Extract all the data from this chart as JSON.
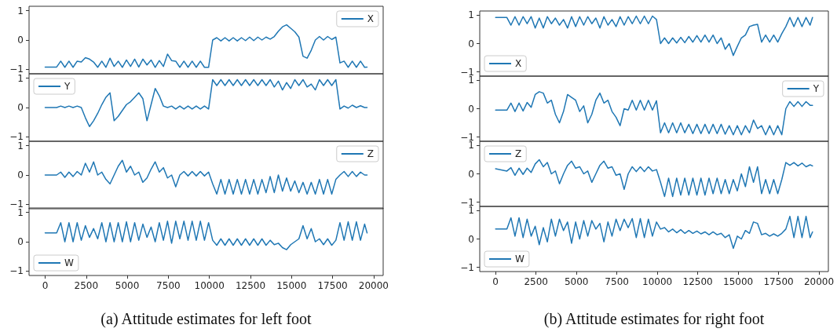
{
  "chart_data": [
    {
      "type": "line",
      "x": [
        0,
        700,
        950,
        1200,
        1450,
        1700,
        1950,
        2200,
        2450,
        2700,
        2950,
        3200,
        3450,
        3700,
        3950,
        4200,
        4450,
        4700,
        4950,
        5200,
        5450,
        5700,
        5950,
        6200,
        6450,
        6700,
        6950,
        7200,
        7450,
        7700,
        7950,
        8200,
        8450,
        8700,
        8950,
        9200,
        9450,
        9700,
        9950,
        10200,
        10450,
        10700,
        10950,
        11200,
        11450,
        11700,
        11950,
        12200,
        12450,
        12700,
        12950,
        13200,
        13450,
        13700,
        13950,
        14200,
        14450,
        14700,
        14950,
        15200,
        15450,
        15700,
        15950,
        16200,
        16450,
        16700,
        16950,
        17200,
        17450,
        17700,
        17950,
        18200,
        18450,
        18700,
        18950,
        19200,
        19450,
        19600
      ],
      "xlim": [
        -980,
        20580
      ],
      "xticks": [
        0,
        2500,
        5000,
        7500,
        10000,
        12500,
        15000,
        17500,
        20000
      ],
      "ylim": [
        -1.15,
        1.15
      ],
      "yticks": [
        -1,
        0,
        1
      ],
      "tick_labels": "y",
      "legend": "top right",
      "marker": "none",
      "series": [
        {
          "name": "X",
          "color": "#1f77b4",
          "values": [
            -0.92,
            -0.92,
            -0.72,
            -0.93,
            -0.72,
            -0.93,
            -0.72,
            -0.75,
            -0.6,
            -0.65,
            -0.75,
            -0.93,
            -0.72,
            -0.93,
            -0.62,
            -0.9,
            -0.72,
            -0.93,
            -0.68,
            -0.9,
            -0.65,
            -0.92,
            -0.65,
            -0.85,
            -0.68,
            -0.93,
            -0.7,
            -0.9,
            -0.48,
            -0.7,
            -0.72,
            -0.93,
            -0.72,
            -0.93,
            -0.72,
            -0.93,
            -0.72,
            -0.93,
            -0.93,
            0.0,
            0.08,
            -0.03,
            0.08,
            -0.03,
            0.08,
            -0.03,
            0.08,
            -0.02,
            0.1,
            -0.02,
            0.1,
            0.0,
            0.1,
            0.03,
            0.12,
            0.3,
            0.45,
            0.52,
            0.4,
            0.28,
            0.1,
            -0.55,
            -0.62,
            -0.35,
            0.0,
            0.12,
            0.0,
            0.12,
            0.02,
            0.1,
            -0.78,
            -0.72,
            -0.93,
            -0.72,
            -0.93,
            -0.72,
            -0.93,
            -0.92
          ]
        }
      ]
    },
    {
      "type": "line",
      "x": [
        0,
        700,
        950,
        1200,
        1450,
        1700,
        1950,
        2200,
        2450,
        2700,
        2950,
        3200,
        3450,
        3700,
        3950,
        4200,
        4450,
        4700,
        4950,
        5200,
        5450,
        5700,
        5950,
        6200,
        6450,
        6700,
        6950,
        7200,
        7450,
        7700,
        7950,
        8200,
        8450,
        8700,
        8950,
        9200,
        9450,
        9700,
        9950,
        10200,
        10450,
        10700,
        10950,
        11200,
        11450,
        11700,
        11950,
        12200,
        12450,
        12700,
        12950,
        13200,
        13450,
        13700,
        13950,
        14200,
        14450,
        14700,
        14950,
        15200,
        15450,
        15700,
        15950,
        16200,
        16450,
        16700,
        16950,
        17200,
        17450,
        17700,
        17950,
        18200,
        18450,
        18700,
        18950,
        19200,
        19450,
        19600
      ],
      "xlim": [
        -980,
        20580
      ],
      "xticks": [
        0,
        2500,
        5000,
        7500,
        10000,
        12500,
        15000,
        17500,
        20000
      ],
      "ylim": [
        -1.15,
        1.15
      ],
      "yticks": [
        -1,
        0,
        1
      ],
      "tick_labels": "y",
      "legend": "top left",
      "marker": "none",
      "series": [
        {
          "name": "Y",
          "color": "#1f77b4",
          "values": [
            0.0,
            0.0,
            0.05,
            0.0,
            0.05,
            0.0,
            0.05,
            0.0,
            -0.35,
            -0.65,
            -0.45,
            -0.2,
            0.1,
            0.35,
            0.5,
            -0.45,
            -0.3,
            -0.1,
            0.1,
            0.2,
            0.35,
            0.5,
            0.3,
            -0.45,
            0.1,
            0.65,
            0.4,
            0.05,
            0.0,
            0.05,
            -0.05,
            0.05,
            -0.05,
            0.05,
            -0.05,
            0.05,
            -0.05,
            0.05,
            -0.05,
            0.95,
            0.75,
            0.95,
            0.75,
            0.95,
            0.75,
            0.95,
            0.75,
            0.95,
            0.75,
            0.95,
            0.75,
            0.95,
            0.75,
            0.95,
            0.7,
            0.9,
            0.6,
            0.85,
            0.65,
            0.95,
            0.75,
            0.95,
            0.7,
            0.8,
            0.6,
            0.95,
            0.75,
            0.95,
            0.75,
            0.95,
            -0.05,
            0.05,
            -0.02,
            0.08,
            0.0,
            0.06,
            0.0,
            0.0
          ]
        }
      ]
    },
    {
      "type": "line",
      "x": [
        0,
        700,
        950,
        1200,
        1450,
        1700,
        1950,
        2200,
        2450,
        2700,
        2950,
        3200,
        3450,
        3700,
        3950,
        4200,
        4450,
        4700,
        4950,
        5200,
        5450,
        5700,
        5950,
        6200,
        6450,
        6700,
        6950,
        7200,
        7450,
        7700,
        7950,
        8200,
        8450,
        8700,
        8950,
        9200,
        9450,
        9700,
        9950,
        10200,
        10450,
        10700,
        10950,
        11200,
        11450,
        11700,
        11950,
        12200,
        12450,
        12700,
        12950,
        13200,
        13450,
        13700,
        13950,
        14200,
        14450,
        14700,
        14950,
        15200,
        15450,
        15700,
        15950,
        16200,
        16450,
        16700,
        16950,
        17200,
        17450,
        17700,
        17950,
        18200,
        18450,
        18700,
        18950,
        19200,
        19450,
        19600
      ],
      "xlim": [
        -980,
        20580
      ],
      "xticks": [
        0,
        2500,
        5000,
        7500,
        10000,
        12500,
        15000,
        17500,
        20000
      ],
      "ylim": [
        -1.15,
        1.15
      ],
      "yticks": [
        -1,
        0,
        1
      ],
      "tick_labels": "y",
      "legend": "top right",
      "marker": "none",
      "series": [
        {
          "name": "Z",
          "color": "#1f77b4",
          "values": [
            0.0,
            0.0,
            0.1,
            -0.08,
            0.1,
            -0.05,
            0.12,
            0.0,
            0.4,
            0.1,
            0.45,
            0.0,
            0.1,
            -0.15,
            -0.3,
            0.0,
            0.3,
            0.5,
            0.1,
            0.3,
            0.0,
            0.1,
            -0.25,
            -0.1,
            0.2,
            0.45,
            0.1,
            0.25,
            -0.1,
            0.0,
            -0.4,
            0.0,
            0.12,
            -0.03,
            0.12,
            -0.03,
            0.12,
            -0.03,
            0.1,
            -0.3,
            -0.65,
            -0.15,
            -0.65,
            -0.15,
            -0.65,
            -0.15,
            -0.65,
            -0.15,
            -0.65,
            -0.15,
            -0.65,
            -0.15,
            -0.6,
            -0.05,
            -0.6,
            0.0,
            -0.55,
            -0.1,
            -0.55,
            -0.2,
            -0.6,
            -0.25,
            -0.65,
            -0.25,
            -0.65,
            -0.15,
            -0.65,
            -0.15,
            -0.65,
            -0.15,
            0.0,
            0.12,
            -0.05,
            0.12,
            -0.05,
            0.1,
            0.0,
            0.0
          ]
        }
      ]
    },
    {
      "type": "line",
      "x": [
        0,
        700,
        950,
        1200,
        1450,
        1700,
        1950,
        2200,
        2450,
        2700,
        2950,
        3200,
        3450,
        3700,
        3950,
        4200,
        4450,
        4700,
        4950,
        5200,
        5450,
        5700,
        5950,
        6200,
        6450,
        6700,
        6950,
        7200,
        7450,
        7700,
        7950,
        8200,
        8450,
        8700,
        8950,
        9200,
        9450,
        9700,
        9950,
        10200,
        10450,
        10700,
        10950,
        11200,
        11450,
        11700,
        11950,
        12200,
        12450,
        12700,
        12950,
        13200,
        13450,
        13700,
        13950,
        14200,
        14450,
        14700,
        14950,
        15200,
        15450,
        15700,
        15950,
        16200,
        16450,
        16700,
        16950,
        17200,
        17450,
        17700,
        17950,
        18200,
        18450,
        18700,
        18950,
        19200,
        19450,
        19600
      ],
      "xlim": [
        -980,
        20580
      ],
      "xticks": [
        0,
        2500,
        5000,
        7500,
        10000,
        12500,
        15000,
        17500,
        20000
      ],
      "ylim": [
        -1.15,
        1.15
      ],
      "yticks": [
        -1,
        0,
        1
      ],
      "legend": "bottom left",
      "marker": "none",
      "annotations": [
        "(a) Attitude estimates for left foot"
      ],
      "series": [
        {
          "name": "W",
          "color": "#1f77b4",
          "values": [
            0.3,
            0.3,
            0.65,
            0.0,
            0.65,
            0.0,
            0.65,
            0.05,
            0.55,
            0.15,
            0.45,
            0.1,
            0.65,
            0.0,
            0.65,
            0.0,
            0.65,
            0.0,
            0.68,
            0.0,
            0.65,
            0.05,
            0.6,
            0.15,
            0.5,
            0.0,
            0.65,
            0.05,
            0.7,
            -0.05,
            0.7,
            0.1,
            0.7,
            0.05,
            0.7,
            0.05,
            0.7,
            0.05,
            0.65,
            0.05,
            -0.12,
            0.1,
            -0.12,
            0.1,
            -0.12,
            0.1,
            -0.12,
            0.1,
            -0.12,
            0.1,
            -0.12,
            0.1,
            -0.12,
            0.05,
            -0.1,
            -0.05,
            -0.2,
            -0.27,
            -0.1,
            0.0,
            0.1,
            0.55,
            0.1,
            0.45,
            0.0,
            0.1,
            -0.1,
            0.1,
            -0.12,
            0.05,
            0.65,
            0.05,
            0.68,
            0.05,
            0.68,
            0.05,
            0.6,
            0.3
          ]
        }
      ]
    },
    {
      "type": "line",
      "x": [
        0,
        700,
        950,
        1200,
        1450,
        1700,
        1950,
        2200,
        2450,
        2700,
        2950,
        3200,
        3450,
        3700,
        3950,
        4200,
        4450,
        4700,
        4950,
        5200,
        5450,
        5700,
        5950,
        6200,
        6450,
        6700,
        6950,
        7200,
        7450,
        7700,
        7950,
        8200,
        8450,
        8700,
        8950,
        9200,
        9450,
        9700,
        9950,
        10200,
        10450,
        10700,
        10950,
        11200,
        11450,
        11700,
        11950,
        12200,
        12450,
        12700,
        12950,
        13200,
        13450,
        13700,
        13950,
        14200,
        14450,
        14700,
        14950,
        15200,
        15450,
        15700,
        15950,
        16200,
        16450,
        16700,
        16950,
        17200,
        17450,
        17700,
        17950,
        18200,
        18450,
        18700,
        18950,
        19200,
        19450,
        19600
      ],
      "xlim": [
        -980,
        20580
      ],
      "xticks": [
        0,
        2500,
        5000,
        7500,
        10000,
        12500,
        15000,
        17500,
        20000
      ],
      "ylim": [
        -1.15,
        1.15
      ],
      "yticks": [
        -1,
        0,
        1
      ],
      "tick_labels": "y",
      "legend": "bottom left",
      "marker": "none",
      "series": [
        {
          "name": "X",
          "color": "#1f77b4",
          "values": [
            0.92,
            0.92,
            0.65,
            0.95,
            0.65,
            0.95,
            0.7,
            0.95,
            0.55,
            0.9,
            0.55,
            0.95,
            0.7,
            0.9,
            0.65,
            0.85,
            0.55,
            0.95,
            0.6,
            0.95,
            0.65,
            0.95,
            0.7,
            0.9,
            0.55,
            0.95,
            0.65,
            0.85,
            0.6,
            0.95,
            0.65,
            0.95,
            0.7,
            0.97,
            0.7,
            0.97,
            0.7,
            0.97,
            0.85,
            0.0,
            0.2,
            0.0,
            0.2,
            0.02,
            0.22,
            0.03,
            0.25,
            0.05,
            0.28,
            0.05,
            0.3,
            0.05,
            0.3,
            0.0,
            0.2,
            -0.2,
            0.0,
            -0.42,
            -0.1,
            0.2,
            0.3,
            0.6,
            0.65,
            0.68,
            0.05,
            0.3,
            0.05,
            0.3,
            0.05,
            0.35,
            0.6,
            0.92,
            0.6,
            0.92,
            0.6,
            0.92,
            0.65,
            0.92
          ]
        }
      ]
    },
    {
      "type": "line",
      "x": [
        0,
        700,
        950,
        1200,
        1450,
        1700,
        1950,
        2200,
        2450,
        2700,
        2950,
        3200,
        3450,
        3700,
        3950,
        4200,
        4450,
        4700,
        4950,
        5200,
        5450,
        5700,
        5950,
        6200,
        6450,
        6700,
        6950,
        7200,
        7450,
        7700,
        7950,
        8200,
        8450,
        8700,
        8950,
        9200,
        9450,
        9700,
        9950,
        10200,
        10450,
        10700,
        10950,
        11200,
        11450,
        11700,
        11950,
        12200,
        12450,
        12700,
        12950,
        13200,
        13450,
        13700,
        13950,
        14200,
        14450,
        14700,
        14950,
        15200,
        15450,
        15700,
        15950,
        16200,
        16450,
        16700,
        16950,
        17200,
        17450,
        17700,
        17950,
        18200,
        18450,
        18700,
        18950,
        19200,
        19450,
        19600
      ],
      "xlim": [
        -980,
        20580
      ],
      "xticks": [
        0,
        2500,
        5000,
        7500,
        10000,
        12500,
        15000,
        17500,
        20000
      ],
      "ylim": [
        -1.15,
        1.15
      ],
      "yticks": [
        -1,
        0,
        1
      ],
      "tick_labels": "y",
      "legend": "top right",
      "marker": "none",
      "series": [
        {
          "name": "Y",
          "color": "#1f77b4",
          "values": [
            -0.05,
            -0.05,
            0.2,
            -0.1,
            0.2,
            -0.08,
            0.22,
            0.05,
            0.5,
            0.6,
            0.55,
            0.2,
            0.3,
            -0.2,
            -0.5,
            -0.1,
            0.5,
            0.4,
            0.3,
            -0.1,
            0.1,
            -0.5,
            -0.2,
            0.3,
            0.55,
            0.2,
            0.3,
            -0.1,
            -0.3,
            -0.6,
            0.0,
            -0.05,
            0.3,
            -0.05,
            0.3,
            -0.05,
            0.3,
            -0.05,
            0.28,
            -0.85,
            -0.5,
            -0.85,
            -0.5,
            -0.85,
            -0.5,
            -0.85,
            -0.55,
            -0.88,
            -0.55,
            -0.88,
            -0.55,
            -0.88,
            -0.55,
            -0.88,
            -0.55,
            -0.9,
            -0.6,
            -0.92,
            -0.6,
            -0.92,
            -0.6,
            -0.85,
            -0.4,
            -0.7,
            -0.6,
            -0.92,
            -0.6,
            -0.92,
            -0.6,
            -0.92,
            0.0,
            0.25,
            0.08,
            0.25,
            0.08,
            0.25,
            0.12,
            0.12
          ]
        }
      ]
    },
    {
      "type": "line",
      "x": [
        0,
        700,
        950,
        1200,
        1450,
        1700,
        1950,
        2200,
        2450,
        2700,
        2950,
        3200,
        3450,
        3700,
        3950,
        4200,
        4450,
        4700,
        4950,
        5200,
        5450,
        5700,
        5950,
        6200,
        6450,
        6700,
        6950,
        7200,
        7450,
        7700,
        7950,
        8200,
        8450,
        8700,
        8950,
        9200,
        9450,
        9700,
        9950,
        10200,
        10450,
        10700,
        10950,
        11200,
        11450,
        11700,
        11950,
        12200,
        12450,
        12700,
        12950,
        13200,
        13450,
        13700,
        13950,
        14200,
        14450,
        14700,
        14950,
        15200,
        15450,
        15700,
        15950,
        16200,
        16450,
        16700,
        16950,
        17200,
        17450,
        17700,
        17950,
        18200,
        18450,
        18700,
        18950,
        19200,
        19450,
        19600
      ],
      "xlim": [
        -980,
        20580
      ],
      "xticks": [
        0,
        2500,
        5000,
        7500,
        10000,
        12500,
        15000,
        17500,
        20000
      ],
      "ylim": [
        -1.15,
        1.15
      ],
      "yticks": [
        -1,
        0,
        1
      ],
      "tick_labels": "y",
      "legend": "top left",
      "marker": "none",
      "series": [
        {
          "name": "Z",
          "color": "#1f77b4",
          "values": [
            0.18,
            0.1,
            0.22,
            -0.05,
            0.2,
            -0.02,
            0.2,
            0.05,
            0.35,
            0.5,
            0.25,
            0.4,
            0.0,
            0.1,
            -0.35,
            0.0,
            0.3,
            0.45,
            0.2,
            0.25,
            0.0,
            0.1,
            -0.3,
            0.0,
            0.3,
            0.45,
            0.2,
            0.25,
            -0.05,
            0.0,
            -0.55,
            0.0,
            0.25,
            0.08,
            0.25,
            0.08,
            0.25,
            0.1,
            0.15,
            -0.3,
            -0.8,
            -0.15,
            -0.8,
            -0.15,
            -0.75,
            -0.15,
            -0.75,
            -0.15,
            -0.75,
            -0.15,
            -0.75,
            -0.15,
            -0.7,
            -0.15,
            -0.7,
            -0.2,
            -0.7,
            -0.2,
            -0.6,
            0.0,
            -0.45,
            0.25,
            -0.3,
            0.25,
            -0.7,
            -0.2,
            -0.7,
            -0.2,
            -0.7,
            -0.2,
            0.4,
            0.3,
            0.4,
            0.28,
            0.38,
            0.25,
            0.32,
            0.28
          ]
        }
      ]
    },
    {
      "type": "line",
      "x": [
        0,
        700,
        950,
        1200,
        1450,
        1700,
        1950,
        2200,
        2450,
        2700,
        2950,
        3200,
        3450,
        3700,
        3950,
        4200,
        4450,
        4700,
        4950,
        5200,
        5450,
        5700,
        5950,
        6200,
        6450,
        6700,
        6950,
        7200,
        7450,
        7700,
        7950,
        8200,
        8450,
        8700,
        8950,
        9200,
        9450,
        9700,
        9950,
        10200,
        10450,
        10700,
        10950,
        11200,
        11450,
        11700,
        11950,
        12200,
        12450,
        12700,
        12950,
        13200,
        13450,
        13700,
        13950,
        14200,
        14450,
        14700,
        14950,
        15200,
        15450,
        15700,
        15950,
        16200,
        16450,
        16700,
        16950,
        17200,
        17450,
        17700,
        17950,
        18200,
        18450,
        18700,
        18950,
        19200,
        19450,
        19600
      ],
      "xlim": [
        -980,
        20580
      ],
      "xticks": [
        0,
        2500,
        5000,
        7500,
        10000,
        12500,
        15000,
        17500,
        20000
      ],
      "ylim": [
        -1.15,
        1.15
      ],
      "yticks": [
        -1,
        0,
        1
      ],
      "legend": "bottom left",
      "marker": "none",
      "annotations": [
        "(b) Attitude estimates for right foot"
      ],
      "series": [
        {
          "name": "W",
          "color": "#1f77b4",
          "values": [
            0.35,
            0.35,
            0.75,
            0.1,
            0.75,
            0.05,
            0.7,
            0.1,
            0.45,
            -0.2,
            0.4,
            -0.1,
            0.7,
            0.1,
            0.7,
            0.3,
            0.6,
            -0.15,
            0.6,
            0.0,
            0.65,
            0.1,
            0.65,
            0.35,
            0.55,
            -0.1,
            0.6,
            0.1,
            0.7,
            0.3,
            0.7,
            0.4,
            0.72,
            0.05,
            0.72,
            0.05,
            0.7,
            0.1,
            0.6,
            0.35,
            0.4,
            0.25,
            0.35,
            0.22,
            0.33,
            0.2,
            0.3,
            0.2,
            0.28,
            0.18,
            0.25,
            0.15,
            0.25,
            0.15,
            0.2,
            0.05,
            0.15,
            -0.33,
            0.1,
            0.0,
            0.3,
            0.2,
            0.6,
            0.55,
            0.15,
            0.2,
            0.1,
            0.18,
            0.1,
            0.2,
            0.35,
            0.8,
            0.05,
            0.8,
            0.05,
            0.8,
            0.05,
            0.25
          ]
        }
      ]
    }
  ]
}
